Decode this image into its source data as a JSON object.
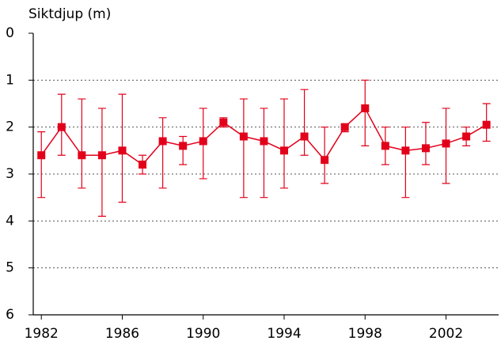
{
  "chart_data": {
    "type": "errorbar-line",
    "title": "Siktdjup (m)",
    "x": [
      1982,
      1983,
      1984,
      1985,
      1986,
      1987,
      1988,
      1989,
      1990,
      1991,
      1992,
      1993,
      1994,
      1995,
      1996,
      1997,
      1998,
      1999,
      2000,
      2001,
      2002,
      2003,
      2004
    ],
    "series": [
      {
        "color": "#e2001a",
        "values": [
          2.6,
          2.0,
          2.6,
          2.6,
          2.5,
          2.8,
          2.3,
          2.4,
          2.3,
          1.9,
          2.2,
          2.3,
          2.5,
          2.2,
          2.7,
          2.0,
          1.6,
          2.4,
          2.5,
          2.45,
          2.35,
          2.2,
          1.95
        ],
        "low": [
          2.1,
          1.3,
          1.4,
          1.6,
          1.3,
          2.6,
          1.8,
          2.2,
          1.6,
          1.8,
          1.4,
          1.6,
          1.4,
          1.2,
          2.0,
          1.95,
          1.0,
          2.0,
          2.0,
          1.9,
          1.6,
          2.0,
          1.5
        ],
        "high": [
          3.5,
          2.6,
          3.3,
          3.9,
          3.6,
          3.0,
          3.3,
          2.8,
          3.1,
          2.0,
          3.5,
          3.5,
          3.3,
          2.6,
          3.2,
          2.1,
          2.4,
          2.8,
          3.5,
          2.8,
          3.2,
          2.4,
          2.3
        ]
      }
    ],
    "xlim": [
      1981.6,
      2004.6
    ],
    "xticks": [
      1982,
      1986,
      1990,
      1994,
      1998,
      2002
    ],
    "ylim": [
      0,
      6
    ],
    "yticks": [
      0,
      1,
      2,
      3,
      4,
      5,
      6
    ],
    "y_inverted": true,
    "grid": true
  }
}
